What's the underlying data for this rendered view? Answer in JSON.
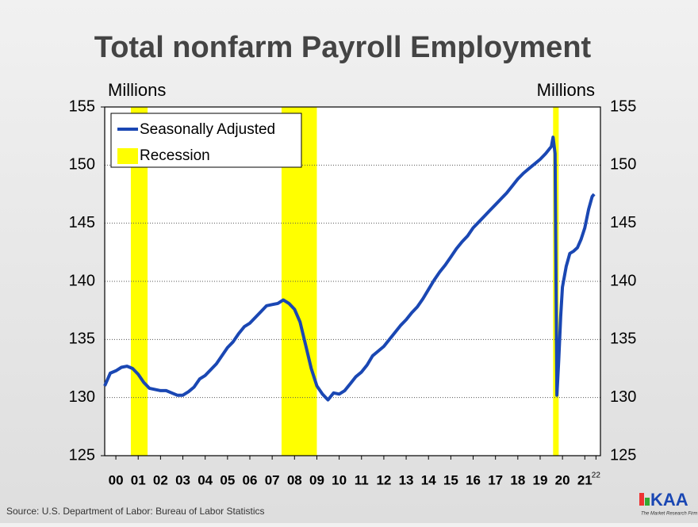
{
  "chart_data": {
    "type": "line",
    "title": "Total nonfarm Payroll Employment",
    "y_label": "Millions",
    "y2_label": "Millions",
    "x": [
      2000.0,
      2000.25,
      2000.5,
      2000.75,
      2001.0,
      2001.25,
      2001.5,
      2001.75,
      2002.0,
      2002.25,
      2002.5,
      2002.75,
      2003.0,
      2003.25,
      2003.5,
      2003.75,
      2004.0,
      2004.25,
      2004.5,
      2004.75,
      2005.0,
      2005.25,
      2005.5,
      2005.75,
      2006.0,
      2006.25,
      2006.5,
      2006.75,
      2007.0,
      2007.25,
      2007.5,
      2007.75,
      2008.0,
      2008.25,
      2008.5,
      2008.75,
      2009.0,
      2009.25,
      2009.5,
      2009.75,
      2010.0,
      2010.25,
      2010.5,
      2010.75,
      2011.0,
      2011.25,
      2011.5,
      2011.75,
      2012.0,
      2012.25,
      2012.5,
      2012.75,
      2013.0,
      2013.25,
      2013.5,
      2013.75,
      2014.0,
      2014.25,
      2014.5,
      2014.75,
      2015.0,
      2015.25,
      2015.5,
      2015.75,
      2016.0,
      2016.25,
      2016.5,
      2016.75,
      2017.0,
      2017.25,
      2017.5,
      2017.75,
      2018.0,
      2018.25,
      2018.5,
      2018.75,
      2019.0,
      2019.25,
      2019.5,
      2019.75,
      2020.0,
      2020.08,
      2020.17,
      2020.25,
      2020.33,
      2020.42,
      2020.5,
      2020.67,
      2020.83,
      2021.0,
      2021.17,
      2021.33,
      2021.5,
      2021.67,
      2021.83,
      2021.92
    ],
    "series": [
      {
        "name": "Seasonally Adjusted",
        "color": "#1a47b3",
        "values": [
          131.0,
          132.1,
          132.3,
          132.6,
          132.7,
          132.5,
          132.0,
          131.3,
          130.8,
          130.7,
          130.6,
          130.6,
          130.4,
          130.2,
          130.2,
          130.5,
          130.9,
          131.6,
          131.9,
          132.4,
          132.9,
          133.6,
          134.3,
          134.8,
          135.5,
          136.1,
          136.4,
          136.9,
          137.4,
          137.9,
          138.0,
          138.1,
          138.4,
          138.1,
          137.6,
          136.5,
          134.5,
          132.5,
          131.0,
          130.3,
          129.8,
          130.4,
          130.3,
          130.6,
          131.2,
          131.8,
          132.2,
          132.8,
          133.6,
          134.0,
          134.4,
          135.0,
          135.6,
          136.2,
          136.7,
          137.3,
          137.8,
          138.5,
          139.3,
          140.1,
          140.8,
          141.4,
          142.1,
          142.8,
          143.4,
          143.9,
          144.6,
          145.1,
          145.6,
          146.1,
          146.6,
          147.1,
          147.6,
          148.2,
          148.8,
          149.3,
          149.7,
          150.1,
          150.5,
          151.0,
          151.6,
          152.4,
          151.0,
          130.2,
          133.2,
          137.0,
          139.5,
          141.3,
          142.4,
          142.6,
          142.9,
          143.6,
          144.6,
          146.2,
          147.3,
          147.5
        ]
      }
    ],
    "recession_name": "Recession",
    "recession_color": "#ffff00",
    "recessions": [
      [
        2001.17,
        2001.92
      ],
      [
        2007.92,
        2009.5
      ],
      [
        2020.08,
        2020.33
      ]
    ],
    "xlim": [
      2000,
      2022.2
    ],
    "xticks": [
      {
        "value": 2000.5,
        "label": "00"
      },
      {
        "value": 2001.5,
        "label": "01"
      },
      {
        "value": 2002.5,
        "label": "02"
      },
      {
        "value": 2003.5,
        "label": "03"
      },
      {
        "value": 2004.5,
        "label": "04"
      },
      {
        "value": 2005.5,
        "label": "05"
      },
      {
        "value": 2006.5,
        "label": "06"
      },
      {
        "value": 2007.5,
        "label": "07"
      },
      {
        "value": 2008.5,
        "label": "08"
      },
      {
        "value": 2009.5,
        "label": "09"
      },
      {
        "value": 2010.5,
        "label": "10"
      },
      {
        "value": 2011.5,
        "label": "11"
      },
      {
        "value": 2012.5,
        "label": "12"
      },
      {
        "value": 2013.5,
        "label": "13"
      },
      {
        "value": 2014.5,
        "label": "14"
      },
      {
        "value": 2015.5,
        "label": "15"
      },
      {
        "value": 2016.5,
        "label": "16"
      },
      {
        "value": 2017.5,
        "label": "17"
      },
      {
        "value": 2018.5,
        "label": "18"
      },
      {
        "value": 2019.5,
        "label": "19"
      },
      {
        "value": 2020.5,
        "label": "20"
      },
      {
        "value": 2021.5,
        "label": "21"
      },
      {
        "value": 2022,
        "label": "22"
      }
    ],
    "ylim": [
      125,
      155
    ],
    "yticks": [
      125,
      130,
      135,
      140,
      145,
      150,
      155
    ],
    "y2lim": [
      125,
      155
    ],
    "y2ticks": [
      125,
      130,
      135,
      140,
      145,
      150,
      155
    ],
    "grid": true,
    "legend": "upper left",
    "source": "Source: U.S. Department of Labor: Bureau of Labor Statistics",
    "logo": "KAA",
    "logo_tagline": "The Market Research Firm"
  }
}
